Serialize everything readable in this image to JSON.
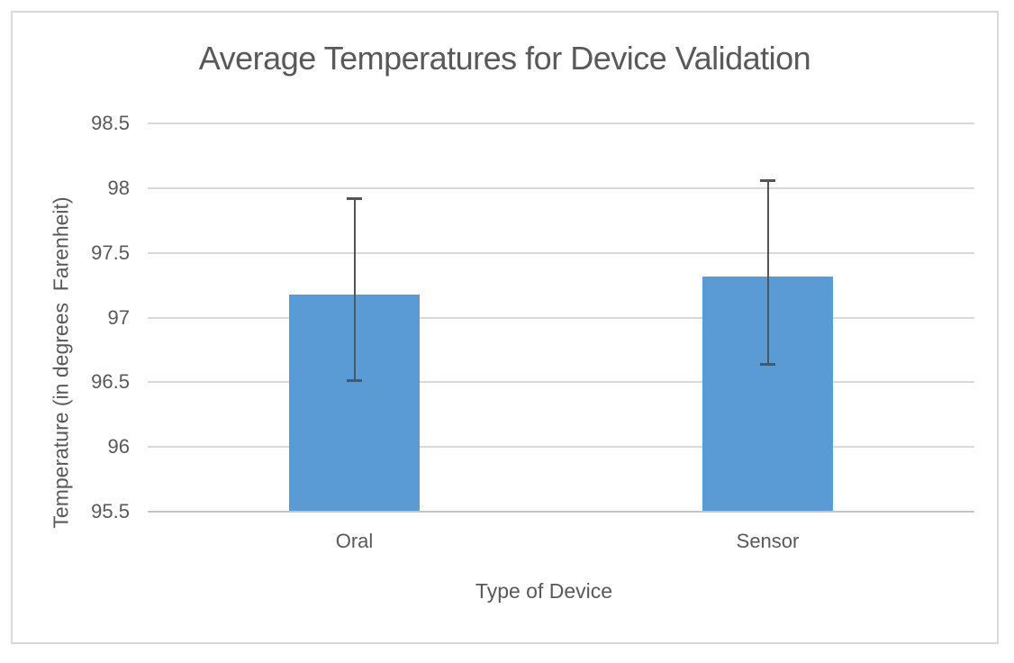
{
  "chart_data": {
    "type": "bar",
    "title": "Average Temperatures for Device Validation",
    "xlabel": "Type of Device",
    "ylabel": "Temperature (in degrees  Farenheit)",
    "categories": [
      "Oral",
      "Sensor"
    ],
    "values": [
      97.18,
      97.32
    ],
    "error_bars": {
      "upper": [
        97.93,
        98.07
      ],
      "lower": [
        96.5,
        96.63
      ]
    },
    "ylim": [
      95.5,
      98.5
    ],
    "ytick_step": 0.5,
    "yticks": [
      "98.5",
      "98",
      "97.5",
      "97",
      "96.5",
      "96",
      "95.5"
    ],
    "grid": "horizontal-only",
    "legend_position": "none",
    "bar_color": "#5b9bd5",
    "error_bar_color": "#555555",
    "gridline_color": "#d9d9d9",
    "axis_line_color": "#c6c6c6",
    "text_color": "#595959",
    "frame_border_color": "#d9d9d9"
  }
}
